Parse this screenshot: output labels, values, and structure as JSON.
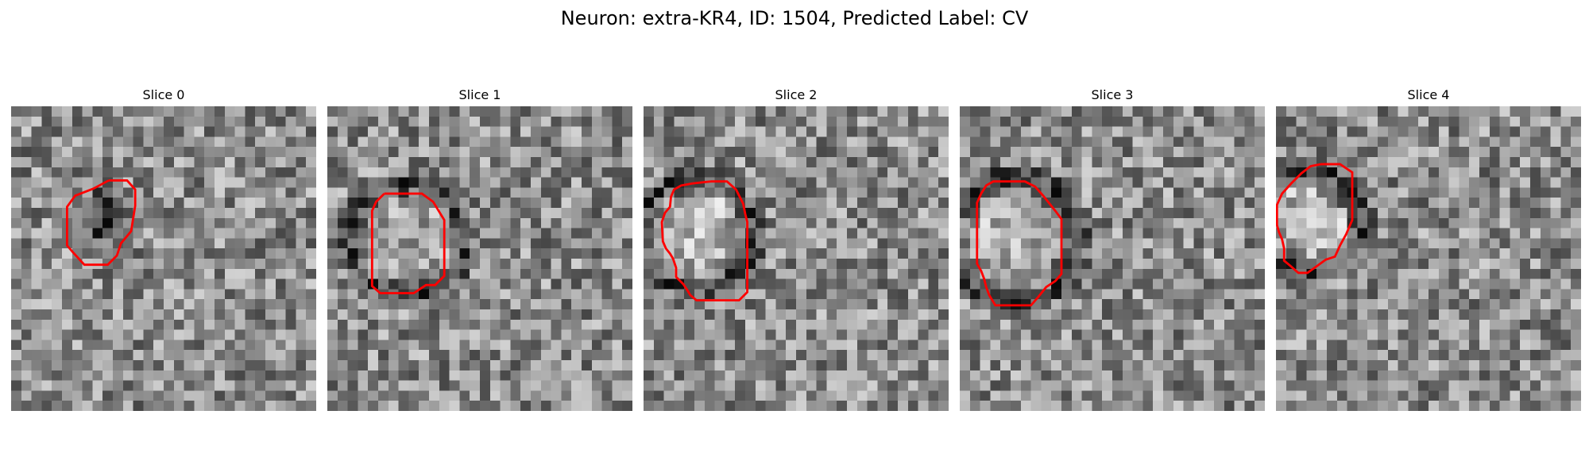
{
  "figure": {
    "title": "Neuron: extra-KR4, ID: 1504, Predicted Label: CV"
  },
  "colors": {
    "contour": "#ff0000",
    "background": "#ffffff"
  },
  "panels": [
    {
      "label": "Slice 0",
      "seed": 11,
      "center_dark": true,
      "ring": false,
      "contour": [
        [
          9.6,
          7.3
        ],
        [
          11.4,
          7.3
        ],
        [
          12.2,
          8.2
        ],
        [
          12.2,
          9.8
        ],
        [
          11.8,
          12.3
        ],
        [
          10.8,
          13.5
        ],
        [
          10.4,
          14.7
        ],
        [
          9.5,
          15.6
        ],
        [
          7.2,
          15.6
        ],
        [
          6.1,
          14.4
        ],
        [
          5.5,
          13.7
        ],
        [
          5.5,
          9.9
        ],
        [
          6.3,
          8.8
        ],
        [
          8.1,
          8.1
        ],
        [
          9.6,
          7.3
        ]
      ]
    },
    {
      "label": "Slice 1",
      "seed": 23,
      "center_dark": false,
      "ring": true,
      "contour": [
        [
          5.6,
          8.6
        ],
        [
          9.3,
          8.6
        ],
        [
          10.4,
          9.4
        ],
        [
          11.5,
          11.2
        ],
        [
          11.5,
          16.7
        ],
        [
          10.6,
          17.6
        ],
        [
          9.7,
          17.6
        ],
        [
          8.5,
          18.4
        ],
        [
          5.2,
          18.4
        ],
        [
          4.4,
          17.7
        ],
        [
          4.4,
          10.3
        ],
        [
          4.8,
          9.4
        ],
        [
          5.6,
          8.6
        ]
      ]
    },
    {
      "label": "Slice 2",
      "seed": 37,
      "center_dark": false,
      "ring": true,
      "contour": [
        [
          6.6,
          7.4
        ],
        [
          8.2,
          7.4
        ],
        [
          9.1,
          8.2
        ],
        [
          9.8,
          9.6
        ],
        [
          10.0,
          10.6
        ],
        [
          10.2,
          11.4
        ],
        [
          10.2,
          18.3
        ],
        [
          9.4,
          19.1
        ],
        [
          5.2,
          19.1
        ],
        [
          4.6,
          18.6
        ],
        [
          4.3,
          18.1
        ],
        [
          3.9,
          17.5
        ],
        [
          3.2,
          16.8
        ],
        [
          3.2,
          15.9
        ],
        [
          2.9,
          15.0
        ],
        [
          2.6,
          14.5
        ],
        [
          2.2,
          14.0
        ],
        [
          1.9,
          13.3
        ],
        [
          1.8,
          11.4
        ],
        [
          2.1,
          10.5
        ],
        [
          2.6,
          9.9
        ],
        [
          2.7,
          8.9
        ],
        [
          3.0,
          8.2
        ],
        [
          3.7,
          7.8
        ],
        [
          4.8,
          7.6
        ],
        [
          6.6,
          7.4
        ]
      ]
    },
    {
      "label": "Slice 3",
      "seed": 53,
      "center_dark": false,
      "ring": true,
      "contour": [
        [
          4.9,
          7.4
        ],
        [
          6.4,
          7.4
        ],
        [
          7.4,
          7.9
        ],
        [
          8.2,
          8.8
        ],
        [
          9.4,
          10.3
        ],
        [
          10.0,
          11.1
        ],
        [
          10.0,
          16.5
        ],
        [
          9.4,
          17.2
        ],
        [
          8.5,
          17.8
        ],
        [
          7.7,
          18.8
        ],
        [
          7.0,
          19.6
        ],
        [
          3.5,
          19.6
        ],
        [
          2.9,
          18.6
        ],
        [
          2.6,
          17.8
        ],
        [
          2.4,
          17.0
        ],
        [
          2.1,
          16.2
        ],
        [
          1.7,
          15.5
        ],
        [
          1.7,
          9.5
        ],
        [
          2.1,
          8.6
        ],
        [
          2.6,
          7.8
        ],
        [
          3.3,
          7.4
        ],
        [
          4.9,
          7.4
        ]
      ]
    },
    {
      "label": "Slice 4",
      "seed": 71,
      "center_dark": false,
      "ring": true,
      "contour": [
        [
          4.4,
          5.7
        ],
        [
          6.3,
          5.7
        ],
        [
          7.5,
          6.5
        ],
        [
          7.5,
          11.2
        ],
        [
          6.9,
          12.6
        ],
        [
          6.3,
          13.7
        ],
        [
          5.8,
          14.8
        ],
        [
          4.9,
          15.1
        ],
        [
          3.8,
          15.9
        ],
        [
          3.1,
          16.4
        ],
        [
          2.2,
          16.4
        ],
        [
          1.4,
          15.7
        ],
        [
          0.8,
          15.2
        ],
        [
          0.8,
          14.0
        ],
        [
          0.6,
          13.1
        ],
        [
          0.3,
          12.4
        ],
        [
          0.1,
          11.7
        ],
        [
          0.1,
          9.7
        ],
        [
          0.6,
          8.6
        ],
        [
          1.5,
          7.6
        ],
        [
          2.5,
          6.6
        ],
        [
          3.4,
          5.9
        ],
        [
          4.4,
          5.7
        ]
      ]
    }
  ]
}
